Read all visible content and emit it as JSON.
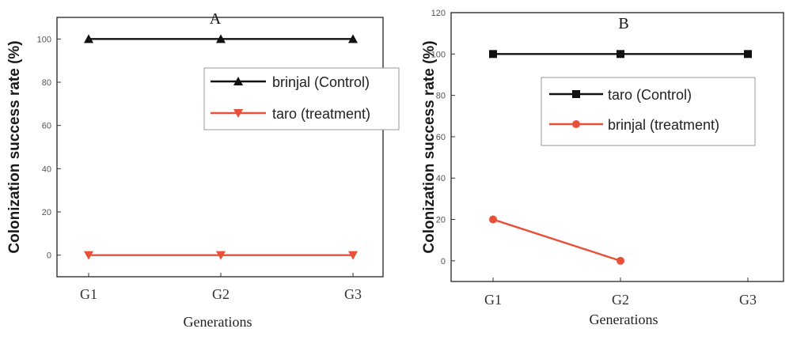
{
  "colors": {
    "control": "#111111",
    "treatment": "#e8503a"
  },
  "chart_data": [
    {
      "type": "line",
      "title": "A",
      "xlabel": "Generations",
      "ylabel": "Colonization success rate (%)",
      "categories": [
        "G1",
        "G2",
        "G3"
      ],
      "ylim": [
        -10,
        110
      ],
      "yticks": [
        0,
        20,
        40,
        60,
        80,
        100
      ],
      "ytick_labels": [
        "0",
        "20",
        "40",
        "60",
        "80",
        "100"
      ],
      "grid": false,
      "legend_position": "right",
      "series": [
        {
          "name": "brinjal (Control)",
          "values": [
            100,
            100,
            100
          ],
          "color": "#111111",
          "marker": "triangle-up"
        },
        {
          "name": "taro (treatment)",
          "values": [
            0,
            0,
            0
          ],
          "color": "#e8503a",
          "marker": "triangle-down"
        }
      ]
    },
    {
      "type": "line",
      "title": "B",
      "xlabel": "Generations",
      "ylabel": "Colonization success rate (%)",
      "categories": [
        "G1",
        "G2",
        "G3"
      ],
      "ylim": [
        -10,
        120
      ],
      "yticks": [
        0,
        20,
        40,
        60,
        80,
        100,
        120
      ],
      "ytick_labels": [
        "0",
        "20",
        "40",
        "60",
        "80",
        "100",
        "120"
      ],
      "grid": false,
      "legend_position": "right",
      "series": [
        {
          "name": "taro (Control)",
          "values": [
            100,
            100,
            100
          ],
          "color": "#111111",
          "marker": "square"
        },
        {
          "name": "brinjal (treatment)",
          "values": [
            20,
            0,
            null
          ],
          "color": "#e8503a",
          "marker": "circle"
        }
      ]
    }
  ]
}
